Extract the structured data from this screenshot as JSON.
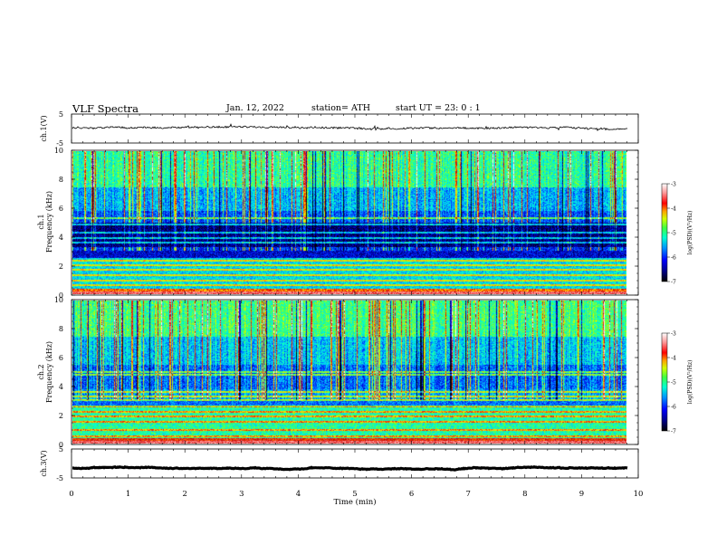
{
  "header": {
    "title": "VLF  Spectra",
    "date": "Jan.  12,  2022",
    "station": "station= ATH",
    "start": "start  UT  =    23: 0   : 1"
  },
  "chart_data": [
    {
      "type": "line",
      "panel": "ch1-waveform",
      "ylabel": "ch.1(V)",
      "yticks": [
        "5",
        "-5"
      ],
      "ylim": [
        -5,
        5
      ],
      "xlim": [
        0,
        10
      ],
      "mean_value": 0.3,
      "noise_amplitude": 0.6
    },
    {
      "type": "heatmap",
      "panel": "ch1-spectrogram",
      "ylabel_lines": [
        "Frequency  (kHz)",
        "ch.1"
      ],
      "yticks": [
        "0",
        "2",
        "4",
        "6",
        "8",
        "10"
      ],
      "ylim": [
        0,
        10
      ],
      "xlim": [
        0,
        9.8
      ],
      "colorbar": {
        "label": "log(PSD)(V²/Hz)",
        "ticks": [
          "-3",
          "-4",
          "-5",
          "-6",
          "-7"
        ],
        "range": [
          -7,
          -3
        ]
      }
    },
    {
      "type": "heatmap",
      "panel": "ch2-spectrogram",
      "ylabel_lines": [
        "Frequency  (kHz)",
        "ch.2"
      ],
      "yticks": [
        "0",
        "2",
        "4",
        "6",
        "8",
        "10"
      ],
      "ylim": [
        0,
        10
      ],
      "xlim": [
        0,
        9.8
      ],
      "colorbar": {
        "label": "log(PSD)(V²/Hz)",
        "ticks": [
          "-3",
          "-4",
          "-5",
          "-6",
          "-7"
        ],
        "range": [
          -7,
          -3
        ]
      }
    },
    {
      "type": "line",
      "panel": "ch3-waveform",
      "ylabel": "ch.3(V)",
      "yticks": [
        "5",
        "-5"
      ],
      "ylim": [
        -5,
        5
      ],
      "xlim": [
        0,
        10
      ],
      "mean_value": -1.6,
      "noise_amplitude": 0.2
    }
  ],
  "xaxis": {
    "label": "Time  (min)",
    "ticks": [
      "0",
      "1",
      "2",
      "3",
      "4",
      "5",
      "6",
      "7",
      "8",
      "9",
      "10"
    ],
    "range": [
      0,
      10
    ]
  },
  "colors": {
    "colormap": [
      "#000000",
      "#000060",
      "#0000d0",
      "#0040ff",
      "#00b0ff",
      "#00ffd8",
      "#40ff60",
      "#c8ff00",
      "#ffd000",
      "#ff4000",
      "#c00000",
      "#ff8080",
      "#ffffff"
    ]
  }
}
